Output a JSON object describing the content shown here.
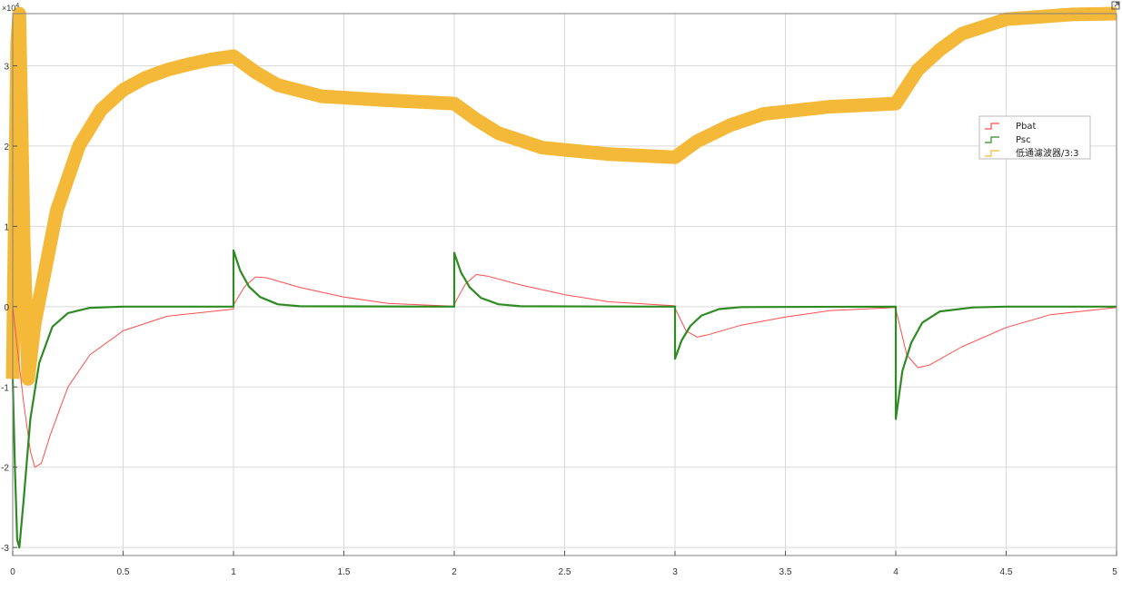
{
  "chart_data": {
    "type": "line",
    "xlim": [
      0,
      5
    ],
    "ylim": [
      -31000,
      36500
    ],
    "y_scale_exponent": "×10",
    "y_scale_power": "4",
    "x_ticks": [
      0,
      0.5,
      1,
      1.5,
      2,
      2.5,
      3,
      3.5,
      4,
      4.5,
      5
    ],
    "x_tick_labels": [
      "0",
      "0.5",
      "1",
      "1.5",
      "2",
      "2.5",
      "3",
      "3.5",
      "4",
      "4.5",
      "5"
    ],
    "y_ticks": [
      -30000,
      -20000,
      -10000,
      0,
      10000,
      20000,
      30000
    ],
    "y_tick_labels": [
      "-3",
      "-2",
      "-1",
      "0",
      "1",
      "2",
      "3"
    ],
    "grid": true,
    "legend_position": "right",
    "background": "#ffffff",
    "series": [
      {
        "name": "Pbat",
        "color": "#ff4d4d",
        "points": [
          [
            0,
            0
          ],
          [
            0.02,
            -5000
          ],
          [
            0.05,
            -12000
          ],
          [
            0.08,
            -18000
          ],
          [
            0.1,
            -20000
          ],
          [
            0.13,
            -19500
          ],
          [
            0.17,
            -16000
          ],
          [
            0.25,
            -10000
          ],
          [
            0.35,
            -6000
          ],
          [
            0.5,
            -3000
          ],
          [
            0.7,
            -1200
          ],
          [
            1.0,
            -300
          ],
          [
            1.0,
            200
          ],
          [
            1.05,
            2500
          ],
          [
            1.1,
            3700
          ],
          [
            1.15,
            3600
          ],
          [
            1.3,
            2400
          ],
          [
            1.5,
            1200
          ],
          [
            1.7,
            400
          ],
          [
            2.0,
            50
          ],
          [
            2.0,
            300
          ],
          [
            2.05,
            2800
          ],
          [
            2.1,
            4000
          ],
          [
            2.15,
            3800
          ],
          [
            2.3,
            2700
          ],
          [
            2.5,
            1500
          ],
          [
            2.7,
            600
          ],
          [
            3.0,
            100
          ],
          [
            3.0,
            -200
          ],
          [
            3.05,
            -3000
          ],
          [
            3.1,
            -3800
          ],
          [
            3.15,
            -3500
          ],
          [
            3.3,
            -2300
          ],
          [
            3.5,
            -1300
          ],
          [
            3.7,
            -500
          ],
          [
            4.0,
            -100
          ],
          [
            4.0,
            -300
          ],
          [
            4.05,
            -6000
          ],
          [
            4.1,
            -7600
          ],
          [
            4.15,
            -7300
          ],
          [
            4.3,
            -5000
          ],
          [
            4.5,
            -2600
          ],
          [
            4.7,
            -1000
          ],
          [
            5.0,
            -100
          ]
        ]
      },
      {
        "name": "Psc",
        "color": "#2e8b22",
        "points": [
          [
            0,
            -9000
          ],
          [
            0.01,
            -20000
          ],
          [
            0.02,
            -29000
          ],
          [
            0.03,
            -30000
          ],
          [
            0.05,
            -24000
          ],
          [
            0.08,
            -14000
          ],
          [
            0.12,
            -7000
          ],
          [
            0.18,
            -2500
          ],
          [
            0.25,
            -800
          ],
          [
            0.35,
            -150
          ],
          [
            0.5,
            0
          ],
          [
            1.0,
            0
          ],
          [
            1.0,
            7000
          ],
          [
            1.03,
            4500
          ],
          [
            1.07,
            2500
          ],
          [
            1.12,
            1200
          ],
          [
            1.2,
            300
          ],
          [
            1.3,
            50
          ],
          [
            2.0,
            0
          ],
          [
            2.0,
            6700
          ],
          [
            2.03,
            4300
          ],
          [
            2.07,
            2400
          ],
          [
            2.12,
            1100
          ],
          [
            2.2,
            300
          ],
          [
            2.3,
            50
          ],
          [
            3.0,
            0
          ],
          [
            3.0,
            -6500
          ],
          [
            3.03,
            -4200
          ],
          [
            3.07,
            -2400
          ],
          [
            3.12,
            -1100
          ],
          [
            3.2,
            -300
          ],
          [
            3.3,
            -50
          ],
          [
            4.0,
            0
          ],
          [
            4.0,
            -14000
          ],
          [
            4.03,
            -8000
          ],
          [
            4.07,
            -4500
          ],
          [
            4.12,
            -2000
          ],
          [
            4.2,
            -600
          ],
          [
            4.35,
            -100
          ],
          [
            4.5,
            0
          ],
          [
            5.0,
            0
          ]
        ]
      },
      {
        "name": "低通濾波器/3:3",
        "color": "#f5b93a",
        "points": [
          [
            0,
            -9000
          ],
          [
            0.02,
            33000
          ],
          [
            0.03,
            36500
          ],
          [
            0.05,
            8000
          ],
          [
            0.07,
            -9000
          ],
          [
            0.1,
            -2000
          ],
          [
            0.2,
            12000
          ],
          [
            0.3,
            20000
          ],
          [
            0.4,
            24500
          ],
          [
            0.5,
            27000
          ],
          [
            0.6,
            28500
          ],
          [
            0.7,
            29500
          ],
          [
            0.8,
            30200
          ],
          [
            0.9,
            30800
          ],
          [
            1.0,
            31200
          ],
          [
            1.1,
            29200
          ],
          [
            1.2,
            27600
          ],
          [
            1.4,
            26200
          ],
          [
            1.7,
            25700
          ],
          [
            2.0,
            25300
          ],
          [
            2.1,
            23300
          ],
          [
            2.2,
            21600
          ],
          [
            2.4,
            19800
          ],
          [
            2.7,
            19000
          ],
          [
            3.0,
            18600
          ],
          [
            3.1,
            20600
          ],
          [
            3.25,
            22600
          ],
          [
            3.4,
            24000
          ],
          [
            3.7,
            24900
          ],
          [
            4.0,
            25300
          ],
          [
            4.1,
            29500
          ],
          [
            4.2,
            32000
          ],
          [
            4.3,
            34000
          ],
          [
            4.5,
            35800
          ],
          [
            4.8,
            36400
          ],
          [
            5.0,
            36500
          ]
        ]
      }
    ]
  }
}
